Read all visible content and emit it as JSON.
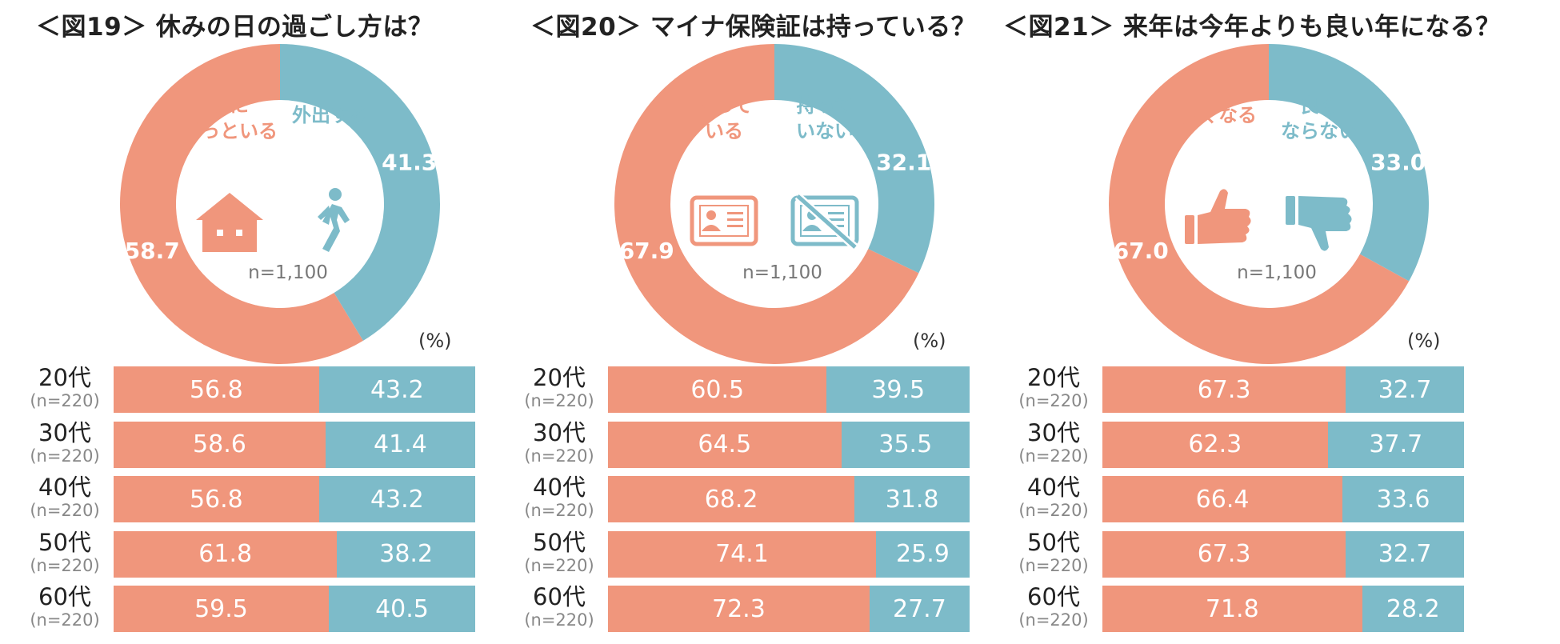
{
  "colors": {
    "accent_salmon": "#f0967c",
    "accent_teal": "#7dbbc9",
    "text_dark": "#222222",
    "text_gray": "#888888"
  },
  "chart_data": [
    {
      "type": "pie",
      "title": "＜図19＞ 休みの日の過ごし方は？",
      "donut": {
        "labels": [
          "家にずっといる",
          "外出する"
        ],
        "values": [
          58.7,
          41.3
        ],
        "inner_labels": [
          [
            "家に",
            "ずっといる"
          ],
          [
            "外出する"
          ]
        ],
        "icons": [
          "house-icon",
          "walking-person-icon"
        ],
        "n_label": "n=1,100"
      },
      "unit": "(%)",
      "bars": {
        "type": "bar",
        "stacked": true,
        "categories": [
          {
            "age": "20代",
            "n": "(n=220)"
          },
          {
            "age": "30代",
            "n": "(n=220)"
          },
          {
            "age": "40代",
            "n": "(n=220)"
          },
          {
            "age": "50代",
            "n": "(n=220)"
          },
          {
            "age": "60代",
            "n": "(n=220)"
          }
        ],
        "series": [
          {
            "values": [
              56.8,
              58.6,
              56.8,
              61.8,
              59.5
            ]
          },
          {
            "values": [
              43.2,
              41.4,
              43.2,
              38.2,
              40.5
            ]
          }
        ]
      }
    },
    {
      "type": "pie",
      "title": "＜図20＞ マイナ保険証は持っている？",
      "donut": {
        "labels": [
          "持っている",
          "持っていない"
        ],
        "values": [
          67.9,
          32.1
        ],
        "inner_labels": [
          [
            "持って",
            "いる"
          ],
          [
            "持って",
            "いない"
          ]
        ],
        "icons": [
          "id-card-icon",
          "id-card-crossed-icon"
        ],
        "n_label": "n=1,100"
      },
      "unit": "(%)",
      "bars": {
        "type": "bar",
        "stacked": true,
        "categories": [
          {
            "age": "20代",
            "n": "(n=220)"
          },
          {
            "age": "30代",
            "n": "(n=220)"
          },
          {
            "age": "40代",
            "n": "(n=220)"
          },
          {
            "age": "50代",
            "n": "(n=220)"
          },
          {
            "age": "60代",
            "n": "(n=220)"
          }
        ],
        "series": [
          {
            "values": [
              60.5,
              64.5,
              68.2,
              74.1,
              72.3
            ]
          },
          {
            "values": [
              39.5,
              35.5,
              31.8,
              25.9,
              27.7
            ]
          }
        ]
      }
    },
    {
      "type": "pie",
      "title": "＜図21＞ 来年は今年よりも良い年になる？",
      "donut": {
        "labels": [
          "良くなる",
          "良くならない"
        ],
        "values": [
          67.0,
          33.0
        ],
        "inner_labels": [
          [
            "良くなる"
          ],
          [
            "良く",
            "ならない"
          ]
        ],
        "icons": [
          "thumbs-up-icon",
          "thumbs-down-icon"
        ],
        "n_label": "n=1,100"
      },
      "unit": "(%)",
      "bars": {
        "type": "bar",
        "stacked": true,
        "categories": [
          {
            "age": "20代",
            "n": "(n=220)"
          },
          {
            "age": "30代",
            "n": "(n=220)"
          },
          {
            "age": "40代",
            "n": "(n=220)"
          },
          {
            "age": "50代",
            "n": "(n=220)"
          },
          {
            "age": "60代",
            "n": "(n=220)"
          }
        ],
        "series": [
          {
            "values": [
              67.3,
              62.3,
              66.4,
              67.3,
              71.8
            ]
          },
          {
            "values": [
              32.7,
              37.7,
              33.6,
              32.7,
              28.2
            ]
          }
        ]
      }
    }
  ]
}
